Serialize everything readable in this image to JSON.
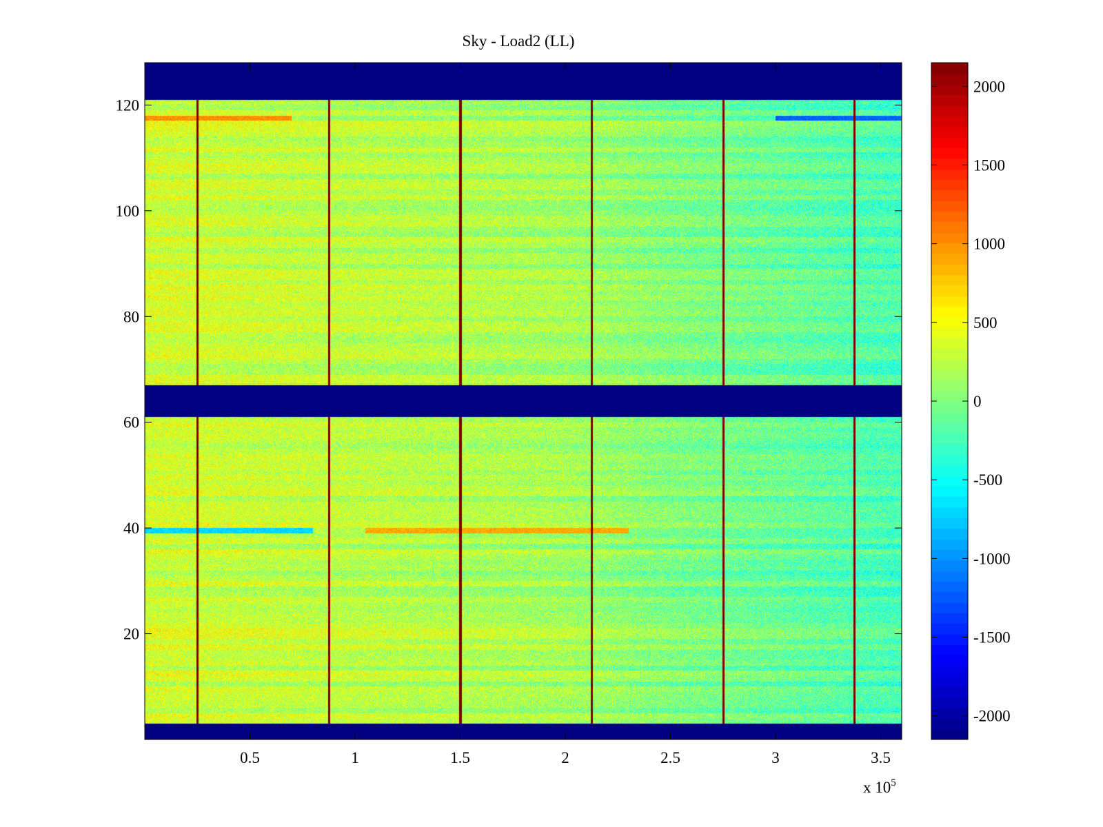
{
  "chart_data": {
    "type": "heatmap",
    "title": "Sky - Load2 (LL)",
    "xlabel": "",
    "ylabel": "",
    "x_multiplier": {
      "base": "x 10",
      "exponent": "5"
    },
    "xlim": [
      0,
      3.6
    ],
    "ylim": [
      0,
      128
    ],
    "x_ticks": [
      {
        "value": 0.5,
        "label": "0.5"
      },
      {
        "value": 1,
        "label": "1"
      },
      {
        "value": 1.5,
        "label": "1.5"
      },
      {
        "value": 2,
        "label": "2"
      },
      {
        "value": 2.5,
        "label": "2.5"
      },
      {
        "value": 3,
        "label": "3"
      },
      {
        "value": 3.5,
        "label": "3.5"
      }
    ],
    "y_ticks": [
      {
        "value": 20,
        "label": "20"
      },
      {
        "value": 40,
        "label": "40"
      },
      {
        "value": 60,
        "label": "60"
      },
      {
        "value": 80,
        "label": "80"
      },
      {
        "value": 100,
        "label": "100"
      },
      {
        "value": 120,
        "label": "120"
      }
    ],
    "colormap": "jet",
    "color_range": [
      -2150,
      2150
    ],
    "colorbar_ticks": [
      {
        "value": 2000,
        "label": "2000"
      },
      {
        "value": 1500,
        "label": "1500"
      },
      {
        "value": 1000,
        "label": "1000"
      },
      {
        "value": 500,
        "label": "500"
      },
      {
        "value": 0,
        "label": "0"
      },
      {
        "value": -500,
        "label": "-500"
      },
      {
        "value": -1000,
        "label": "-1000"
      },
      {
        "value": -1500,
        "label": "-1500"
      },
      {
        "value": -2000,
        "label": "-2000"
      }
    ],
    "masked_rows": [
      {
        "from": 0,
        "to": 3,
        "value": -2150
      },
      {
        "from": 61,
        "to": 67,
        "value": -2150
      },
      {
        "from": 121,
        "to": 128,
        "value": -2150
      }
    ],
    "spike_columns_x": [
      0.25,
      0.875,
      1.5,
      2.125,
      2.75,
      3.375
    ],
    "spike_value": 2150,
    "background_trend": [
      {
        "x": 0.0,
        "value": 350
      },
      {
        "x": 1.0,
        "value": 250
      },
      {
        "x": 2.0,
        "value": 150
      },
      {
        "x": 2.5,
        "value": 0
      },
      {
        "x": 3.0,
        "value": -100
      },
      {
        "x": 3.6,
        "value": -250
      }
    ],
    "row_features": [
      {
        "row": 39,
        "x_from": 0.0,
        "x_to": 0.8,
        "value": -700
      },
      {
        "row": 39,
        "x_from": 1.05,
        "x_to": 2.3,
        "value": 900
      },
      {
        "row": 117,
        "x_from": 0.0,
        "x_to": 0.7,
        "value": 1000
      },
      {
        "row": 117,
        "x_from": 3.0,
        "x_to": 3.6,
        "value": -1200
      }
    ]
  }
}
